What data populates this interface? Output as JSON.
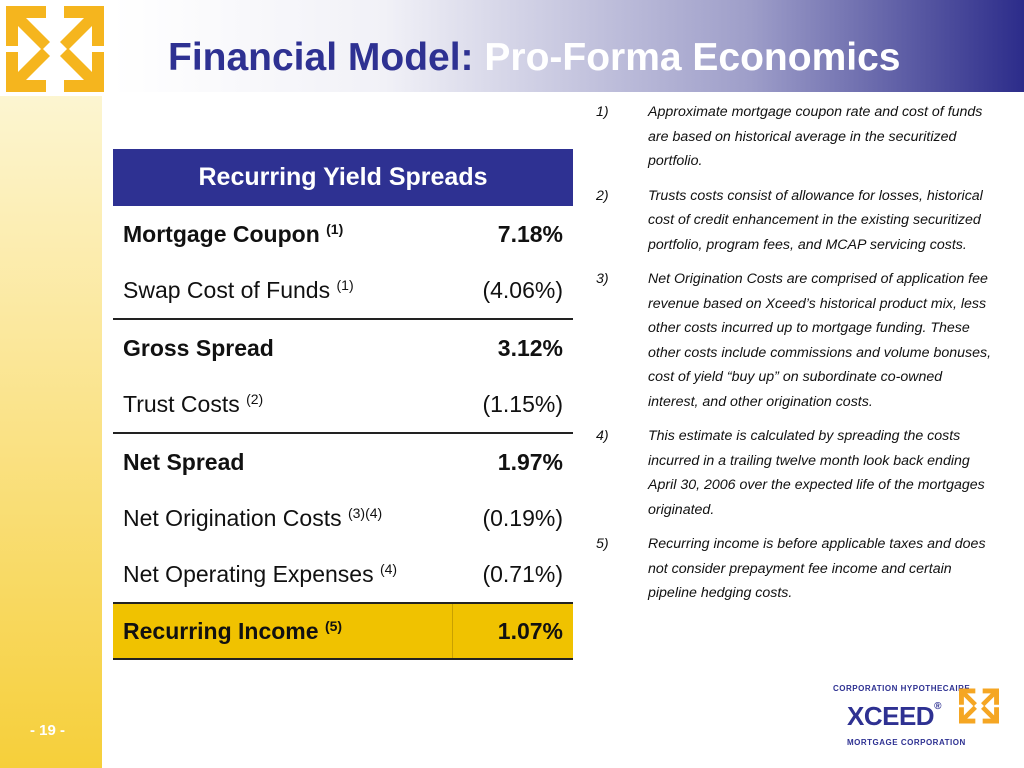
{
  "header": {
    "title_part1": "Financial Model:",
    "title_part2": "Pro-Forma Economics"
  },
  "table": {
    "header": "Recurring Yield Spreads",
    "rows": [
      {
        "label": "Mortgage Coupon",
        "note": "(1)",
        "value": "7.18%"
      },
      {
        "label": "Swap Cost of Funds",
        "note": "(1)",
        "value": "(4.06%)"
      },
      {
        "label": "Gross Spread",
        "note": "",
        "value": "3.12%"
      },
      {
        "label": "Trust Costs",
        "note": "(2)",
        "value": "(1.15%)"
      },
      {
        "label": "Net Spread",
        "note": "",
        "value": "1.97%"
      },
      {
        "label": "Net Origination Costs",
        "note": "(3)(4)",
        "value": "(0.19%)"
      },
      {
        "label": "Net Operating Expenses",
        "note": "(4)",
        "value": "(0.71%)"
      },
      {
        "label": "Recurring Income",
        "note": "(5)",
        "value": "1.07%"
      }
    ]
  },
  "notes": [
    {
      "num": "1)",
      "text": "Approximate mortgage coupon rate and cost of funds are based on historical average in the securitized portfolio."
    },
    {
      "num": "2)",
      "text": "Trusts costs consist of allowance for losses, historical cost of credit enhancement in the existing securitized portfolio, program fees, and MCAP servicing costs."
    },
    {
      "num": "3)",
      "text": "Net Origination Costs are comprised of application fee revenue based on Xceed’s historical product mix, less other costs incurred up to mortgage funding.  These other costs include commissions and volume bonuses, cost of yield “buy up” on subordinate co-owned interest, and other origination costs."
    },
    {
      "num": "4)",
      "text": "This estimate is calculated by spreading the costs incurred in a trailing twelve month look back ending April 30, 2006 over the expected life of the mortgages originated."
    },
    {
      "num": "5)",
      "text": "Recurring income is before applicable taxes and does not consider prepayment fee income and certain pipeline hedging costs."
    }
  ],
  "footer": {
    "page": "- 19 -",
    "logo_top": "CORPORATION HYPOTHECAIRE",
    "logo_name": "XCEED",
    "logo_reg": "®",
    "logo_bottom": "MORTGAGE CORPORATION"
  },
  "colors": {
    "brand_blue": "#2e3192",
    "gold": "#f0c200",
    "logo_orange": "#f5a623"
  },
  "icons": [
    "xceed-arrows-logo-icon"
  ]
}
